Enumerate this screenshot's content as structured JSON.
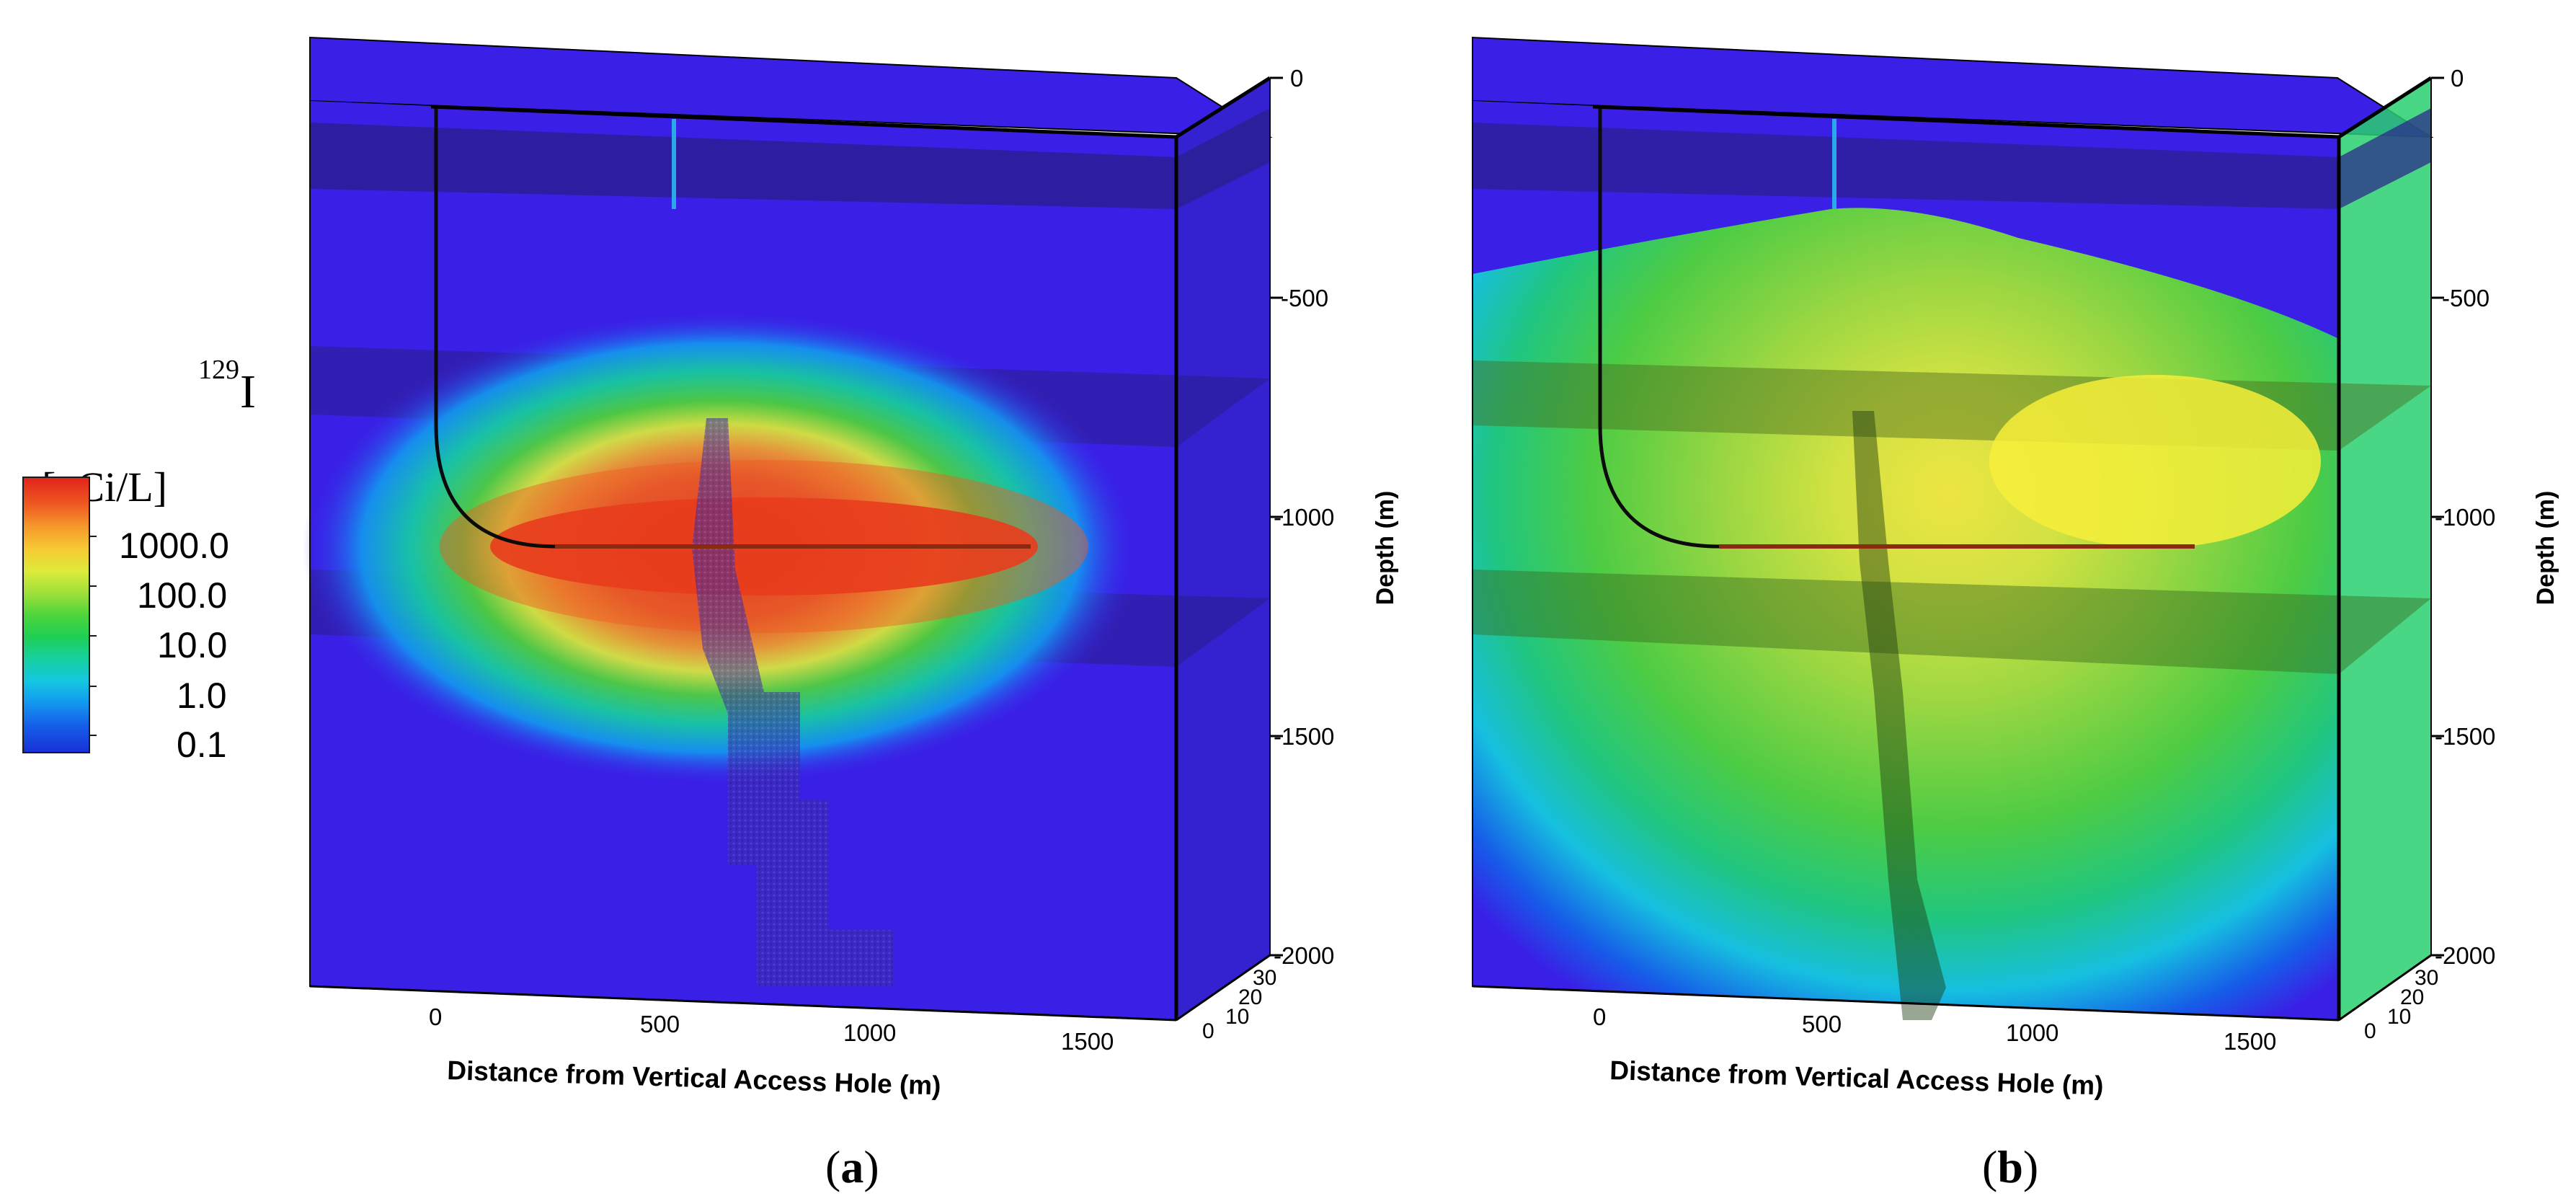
{
  "legend": {
    "isotope_mass": "129",
    "isotope_symbol": "I",
    "unit": "[pCi/L]",
    "levels": [
      "1000.0",
      "100.0",
      "10.0",
      "1.0",
      "0.1"
    ],
    "colors": [
      "#e2231a",
      "#ef5a22",
      "#f59a2c",
      "#f7c933",
      "#ddeb3a",
      "#9fe03a",
      "#4fd53b",
      "#1fcf55",
      "#16d0a0",
      "#14c7e0",
      "#1397f0",
      "#1460e8",
      "#1a2fd8"
    ]
  },
  "axes": {
    "x_label": "Distance from Vertical Access Hole (m)",
    "x_ticks": [
      "0",
      "500",
      "1000",
      "1500"
    ],
    "depth_label": "Depth (m)",
    "depth_ticks": [
      "0",
      "-500",
      "-1000",
      "-1500",
      "-2000"
    ],
    "y_ticks": [
      "0",
      "10",
      "20",
      "30"
    ]
  },
  "panels": [
    {
      "id": "a",
      "label": "(a)",
      "label_letter": "a"
    },
    {
      "id": "b",
      "label": "(b)",
      "label_letter": "b"
    }
  ],
  "colors": {
    "background_blue": "#3a1fe6",
    "layer_band": "#2a1f8a",
    "box_edge": "#000000",
    "borehole": "#0b0b0b",
    "horizontal_section": "#8a2a10",
    "access_hole": "#2aa8e8"
  }
}
